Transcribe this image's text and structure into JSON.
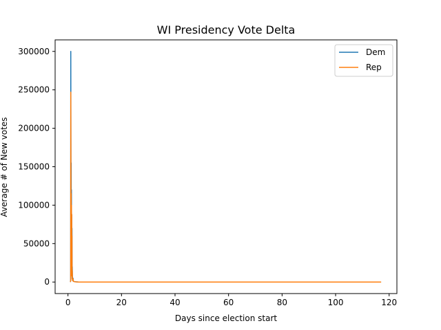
{
  "chart_data": {
    "type": "line",
    "title": "WI Presidency Vote Delta",
    "xlabel": "Days since election start",
    "ylabel": "Average # of New votes",
    "xlim": [
      -4.8,
      122.9
    ],
    "ylim": [
      -15000,
      315000
    ],
    "xticks": [
      0,
      20,
      40,
      60,
      80,
      100,
      120
    ],
    "yticks": [
      0,
      50000,
      100000,
      150000,
      200000,
      250000,
      300000
    ],
    "grid": false,
    "legend_position": "top-right",
    "series": [
      {
        "name": "Dem",
        "color": "#1f77b4",
        "points": [
          [
            0.9,
            0
          ],
          [
            1.0,
            2000
          ],
          [
            1.05,
            300000
          ],
          [
            1.1,
            180000
          ],
          [
            1.15,
            40000
          ],
          [
            1.2,
            155000
          ],
          [
            1.25,
            10000
          ],
          [
            1.3,
            120000
          ],
          [
            1.35,
            55000
          ],
          [
            1.4,
            88000
          ],
          [
            1.45,
            30000
          ],
          [
            1.5,
            70000
          ],
          [
            1.55,
            5000
          ],
          [
            1.6,
            20000
          ],
          [
            1.7,
            2000
          ],
          [
            1.9,
            5000
          ],
          [
            2.0,
            1000
          ],
          [
            2.5,
            500
          ],
          [
            3.0,
            300
          ],
          [
            4.0,
            0
          ],
          [
            20,
            0
          ],
          [
            40,
            0
          ],
          [
            60,
            0
          ],
          [
            80,
            0
          ],
          [
            100,
            0
          ],
          [
            117,
            0
          ]
        ]
      },
      {
        "name": "Rep",
        "color": "#ff7f0e",
        "points": [
          [
            0.9,
            0
          ],
          [
            1.0,
            1500
          ],
          [
            1.05,
            247000
          ],
          [
            1.1,
            150000
          ],
          [
            1.15,
            30000
          ],
          [
            1.2,
            115000
          ],
          [
            1.25,
            8000
          ],
          [
            1.3,
            100000
          ],
          [
            1.35,
            40000
          ],
          [
            1.4,
            88000
          ],
          [
            1.45,
            25000
          ],
          [
            1.5,
            60000
          ],
          [
            1.55,
            4000
          ],
          [
            1.6,
            15000
          ],
          [
            1.7,
            2000
          ],
          [
            1.9,
            4000
          ],
          [
            2.0,
            800
          ],
          [
            2.5,
            400
          ],
          [
            3.0,
            200
          ],
          [
            4.0,
            0
          ],
          [
            20,
            0
          ],
          [
            40,
            0
          ],
          [
            60,
            0
          ],
          [
            80,
            0
          ],
          [
            100,
            0
          ],
          [
            117,
            0
          ]
        ]
      }
    ]
  }
}
